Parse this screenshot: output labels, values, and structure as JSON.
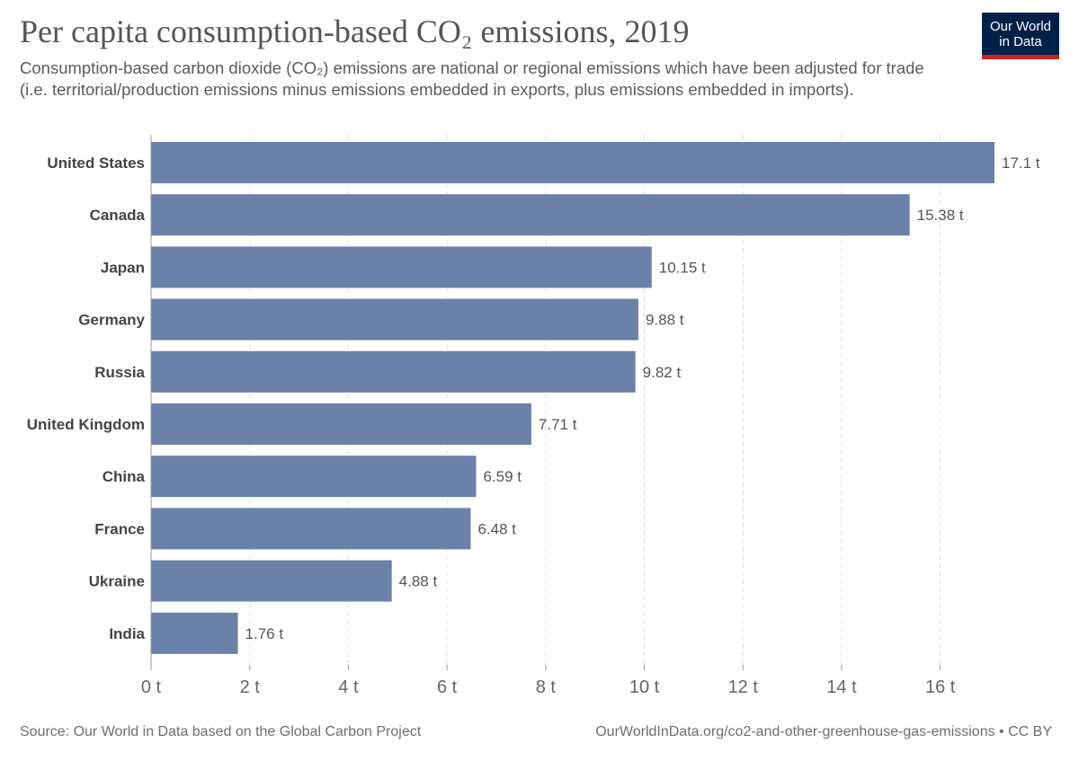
{
  "header": {
    "title": "Per capita consumption-based CO₂ emissions, 2019",
    "subtitle": "Consumption-based carbon dioxide (CO₂) emissions are national or regional emissions which have been adjusted for trade (i.e. territorial/production emissions minus emissions embedded in exports, plus emissions embedded in imports).",
    "logo_line1": "Our World",
    "logo_line2": "in Data"
  },
  "footer": {
    "source": "Source: Our World in Data based on the Global Carbon Project",
    "url": "OurWorldInData.org/co2-and-other-greenhouse-gas-emissions • CC BY"
  },
  "colors": {
    "bar": "#6a81aa",
    "gridline": "#dddddd",
    "logo_bg": "#002147",
    "logo_accent": "#ce261e"
  },
  "chart_data": {
    "type": "bar",
    "orientation": "horizontal",
    "categories": [
      "United States",
      "Canada",
      "Japan",
      "Germany",
      "Russia",
      "United Kingdom",
      "China",
      "France",
      "Ukraine",
      "India"
    ],
    "values": [
      17.1,
      15.38,
      10.15,
      9.88,
      9.82,
      7.71,
      6.59,
      6.48,
      4.88,
      1.76
    ],
    "value_labels": [
      "17.1 t",
      "15.38 t",
      "10.15 t",
      "9.88 t",
      "9.82 t",
      "7.71 t",
      "6.59 t",
      "6.48 t",
      "4.88 t",
      "1.76 t"
    ],
    "unit": "t",
    "xlim": [
      0,
      17.1
    ],
    "xticks": [
      0,
      2,
      4,
      6,
      8,
      10,
      12,
      14,
      16
    ],
    "xtick_labels": [
      "0 t",
      "2 t",
      "4 t",
      "6 t",
      "8 t",
      "10 t",
      "12 t",
      "14 t",
      "16 t"
    ],
    "grid": "vertical-dashed",
    "legend": "none"
  }
}
